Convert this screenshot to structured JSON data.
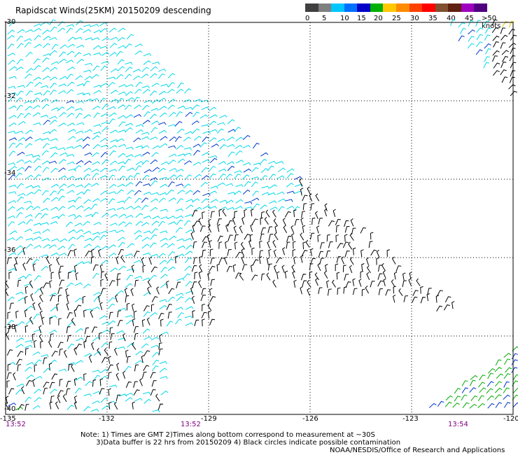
{
  "title": "Rapidscat Winds(25KM) 20150209 descending",
  "legend": {
    "units": "knots",
    "swatches": [
      {
        "color": "#404040"
      },
      {
        "color": "#7f7f7f"
      },
      {
        "color": "#00c8ff"
      },
      {
        "color": "#0070ff"
      },
      {
        "color": "#0000c8"
      },
      {
        "color": "#00b000"
      },
      {
        "color": "#ffc800"
      },
      {
        "color": "#ff8c00"
      },
      {
        "color": "#ff4000"
      },
      {
        "color": "#ff0000"
      },
      {
        "color": "#805030"
      },
      {
        "color": "#602010"
      },
      {
        "color": "#a000c0"
      },
      {
        "color": "#500080"
      }
    ],
    "ticks": [
      "0",
      "5",
      "10",
      "15",
      "20",
      "25",
      "30",
      "35",
      "40",
      "45",
      ">50 knots"
    ]
  },
  "axes": {
    "lat_labels": [
      "-30",
      "-32",
      "-34",
      "-36",
      "-38",
      "-40"
    ],
    "lon_labels": [
      "-135",
      "-132",
      "-129",
      "-126",
      "-123",
      "-120"
    ]
  },
  "times": [
    "13:52",
    "13:52",
    "13:54"
  ],
  "notes": [
    "Note: 1) Times are GMT 2)Times along bottom correspond to measurement at ~30S",
    "       3)Data buffer is 22 hrs from 20150209 4) Black circles indicate possible contamination"
  ],
  "credit": "NOAA/NESDIS/Office of Research and Applications",
  "wind_colors": {
    "calm": "#000000",
    "light": "#00d8e8",
    "moderate": "#0033cc",
    "fresh": "#00aa00",
    "strong": "#e0c000"
  },
  "swath": {
    "main": {
      "lon_range": [
        -135,
        -123.2
      ],
      "lat_range": [
        -40,
        -30
      ]
    },
    "northeast_patch": {
      "lon_range": [
        -121.3,
        -120
      ],
      "lat_range": [
        -32,
        -30
      ]
    },
    "southeast_patch": {
      "lon_range": [
        -123.5,
        -120
      ],
      "lat_range": [
        -40,
        -38.5
      ]
    }
  }
}
